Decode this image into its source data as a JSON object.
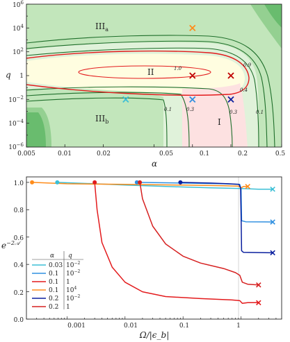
{
  "top_panel": {
    "xlabel": "α",
    "ylabel": "q",
    "x_ticks": [
      "0.005",
      "0.01",
      "0.02",
      "0.05",
      "0.1",
      "0.2",
      "0.5"
    ],
    "y_ticks": [
      {
        "base": "10",
        "exp": "6"
      },
      {
        "base": "10",
        "exp": "4"
      },
      {
        "base": "10",
        "exp": "2"
      },
      {
        "base": "1",
        "exp": ""
      },
      {
        "base": "10",
        "exp": "−2"
      },
      {
        "base": "10",
        "exp": "−4"
      },
      {
        "base": "10",
        "exp": "−6"
      }
    ],
    "regions": [
      {
        "base": "III",
        "sub": "a"
      },
      {
        "base": "II",
        "sub": ""
      },
      {
        "base": "III",
        "sub": "b"
      },
      {
        "base": "I",
        "sub": ""
      }
    ],
    "contour_labels": [
      "1.0",
      "0.9",
      "0.4",
      "0.1",
      "0.3",
      "0.3",
      "0.1"
    ]
  },
  "bottom_panel": {
    "ylabel_base": "e",
    "ylabel_exp": "−2𝒜",
    "xlabel": "Ω/|ϵ_b|",
    "y_ticks": [
      "1.0",
      "0.8",
      "0.6",
      "0.4",
      "0.2",
      "0.0"
    ],
    "x_ticks": [
      "0.001",
      "0.01",
      "0.1",
      "1"
    ],
    "legend": {
      "header_alpha": "α",
      "header_q": "q",
      "rows": [
        {
          "alpha": "0.03",
          "q_base": "10",
          "q_exp": "−2",
          "color": "#3bbfd6"
        },
        {
          "alpha": "0.1",
          "q_base": "10",
          "q_exp": "−2",
          "color": "#2f8fe0"
        },
        {
          "alpha": "0.1",
          "q_base": "1",
          "q_exp": "",
          "color": "#e31a1c"
        },
        {
          "alpha": "0.1",
          "q_base": "10",
          "q_exp": "4",
          "color": "#ff8c1a"
        },
        {
          "alpha": "0.2",
          "q_base": "10",
          "q_exp": "−2",
          "color": "#0a1f9e"
        },
        {
          "alpha": "0.2",
          "q_base": "1",
          "q_exp": "",
          "color": "#d62020"
        }
      ]
    }
  },
  "chart_data": [
    {
      "type": "heatmap",
      "xlabel": "α",
      "ylabel": "q",
      "x_scale": "log",
      "y_scale": "log",
      "xlim": [
        0.005,
        0.5
      ],
      "ylim": [
        1e-06,
        1000000.0
      ],
      "regions": [
        "IIIa",
        "II",
        "IIIb",
        "I"
      ],
      "contour_levels": [
        1.0,
        0.9,
        0.4,
        0.3,
        0.1
      ],
      "markers": [
        {
          "alpha": 0.1,
          "q": 10000,
          "color": "#ff8c1a"
        },
        {
          "alpha": 0.1,
          "q": 1,
          "color": "#c00000"
        },
        {
          "alpha": 0.2,
          "q": 1,
          "color": "#c00000"
        },
        {
          "alpha": 0.03,
          "q": 0.01,
          "color": "#3bbfd6"
        },
        {
          "alpha": 0.1,
          "q": 0.01,
          "color": "#2f8fe0"
        },
        {
          "alpha": 0.2,
          "q": 0.01,
          "color": "#0a1f9e"
        }
      ],
      "colors": {
        "dark_green": "#69bc6e",
        "mid_green": "#94d091",
        "light_green": "#c2e6bb",
        "pale_green": "#e0f2da",
        "yellow": "#fffde0",
        "pink": "#fde1e1",
        "contour": "#1e6e2a",
        "red_contour": "#e31a1c"
      }
    },
    {
      "type": "line",
      "xlabel": "Ω/|ϵ_b|",
      "ylabel": "e^{-2A}",
      "x_scale": "log",
      "xlim": [
        0.0002,
        5
      ],
      "ylim": [
        0,
        1.04
      ],
      "series": [
        {
          "name": "α=0.03, q=10^-2",
          "color": "#3bbfd6",
          "start": 0.00068,
          "points": [
            [
              0.00068,
              1.0
            ],
            [
              0.003,
              0.99
            ],
            [
              0.01,
              0.98
            ],
            [
              0.05,
              0.97
            ],
            [
              0.3,
              0.96
            ],
            [
              1,
              0.955
            ],
            [
              2,
              0.95
            ],
            [
              3.5,
              0.95
            ]
          ]
        },
        {
          "name": "α=0.1, q=10^-2",
          "color": "#2f8fe0",
          "start": 0.016,
          "points": [
            [
              0.016,
              1.0
            ],
            [
              0.1,
              0.995
            ],
            [
              0.5,
              0.99
            ],
            [
              0.95,
              0.985
            ],
            [
              1.0,
              0.95
            ],
            [
              1.02,
              0.72
            ],
            [
              1.2,
              0.712
            ],
            [
              3.5,
              0.71
            ]
          ]
        },
        {
          "name": "α=0.1, q=1",
          "color": "#e31a1c",
          "start": 0.003,
          "points": [
            [
              0.003,
              1.0
            ],
            [
              0.0033,
              0.8
            ],
            [
              0.004,
              0.56
            ],
            [
              0.006,
              0.38
            ],
            [
              0.01,
              0.27
            ],
            [
              0.02,
              0.2
            ],
            [
              0.05,
              0.165
            ],
            [
              0.2,
              0.15
            ],
            [
              0.7,
              0.14
            ],
            [
              0.95,
              0.135
            ],
            [
              1.05,
              0.115
            ],
            [
              1.3,
              0.12
            ],
            [
              2,
              0.12
            ]
          ]
        },
        {
          "name": "α=0.1, q=10^4",
          "color": "#ff8c1a",
          "start": 0.00025,
          "points": [
            [
              0.00025,
              1.0
            ],
            [
              0.001,
              0.99
            ],
            [
              0.01,
              0.985
            ],
            [
              0.1,
              0.98
            ],
            [
              0.5,
              0.975
            ],
            [
              0.9,
              0.972
            ],
            [
              1.0,
              0.96
            ],
            [
              1.1,
              0.97
            ],
            [
              1.3,
              0.97
            ]
          ]
        },
        {
          "name": "α=0.2, q=10^-2",
          "color": "#0a1f9e",
          "start": 0.09,
          "points": [
            [
              0.09,
              1.0
            ],
            [
              0.3,
              0.995
            ],
            [
              0.6,
              0.99
            ],
            [
              0.92,
              0.985
            ],
            [
              0.98,
              0.96
            ],
            [
              1.0,
              0.75
            ],
            [
              1.02,
              0.5
            ],
            [
              1.1,
              0.488
            ],
            [
              3.5,
              0.485
            ]
          ]
        },
        {
          "name": "α=0.2, q=1",
          "color": "#d62020",
          "start": 0.018,
          "points": [
            [
              0.018,
              1.0
            ],
            [
              0.02,
              0.88
            ],
            [
              0.03,
              0.68
            ],
            [
              0.05,
              0.55
            ],
            [
              0.1,
              0.46
            ],
            [
              0.2,
              0.41
            ],
            [
              0.5,
              0.37
            ],
            [
              0.8,
              0.34
            ],
            [
              0.95,
              0.32
            ],
            [
              1.05,
              0.27
            ],
            [
              1.3,
              0.255
            ],
            [
              2,
              0.25
            ]
          ]
        }
      ],
      "legend_position": "bottom-left"
    }
  ]
}
